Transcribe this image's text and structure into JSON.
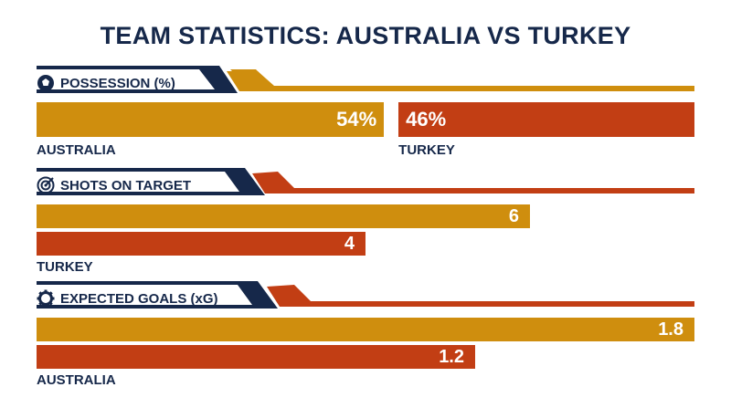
{
  "colors": {
    "navy": "#16284a",
    "gold": "#cf8e0e",
    "red": "#c23e14"
  },
  "chart_data": [
    {
      "type": "bar",
      "title": "POSSESSION (%)",
      "icon": "soccer-ball-icon",
      "series": [
        {
          "name": "AUSTRALIA",
          "value": 54,
          "display": "54%"
        },
        {
          "name": "TURKEY",
          "value": 46,
          "display": "46%"
        }
      ],
      "team_labels": [
        "AUSTRALIA",
        "TURKEY"
      ]
    },
    {
      "type": "bar",
      "title": "SHOTS ON TARGET",
      "icon": "target-icon",
      "series": [
        {
          "value": 6,
          "display": "6"
        },
        {
          "value": 4,
          "display": "4"
        }
      ],
      "team_labels": [
        "TURKEY"
      ],
      "xlim": [
        0,
        8
      ]
    },
    {
      "type": "bar",
      "title": "EXPECTED GOALS (xG)",
      "icon": "gear-icon",
      "series": [
        {
          "value": 1.8,
          "display": "1.8"
        },
        {
          "value": 1.2,
          "display": "1.2"
        }
      ],
      "team_labels": [
        "AUSTRALIA"
      ],
      "xlim": [
        0,
        1.8
      ]
    }
  ],
  "title": "TEAM STATISTICS: AUSTRALIA VS TURKEY"
}
